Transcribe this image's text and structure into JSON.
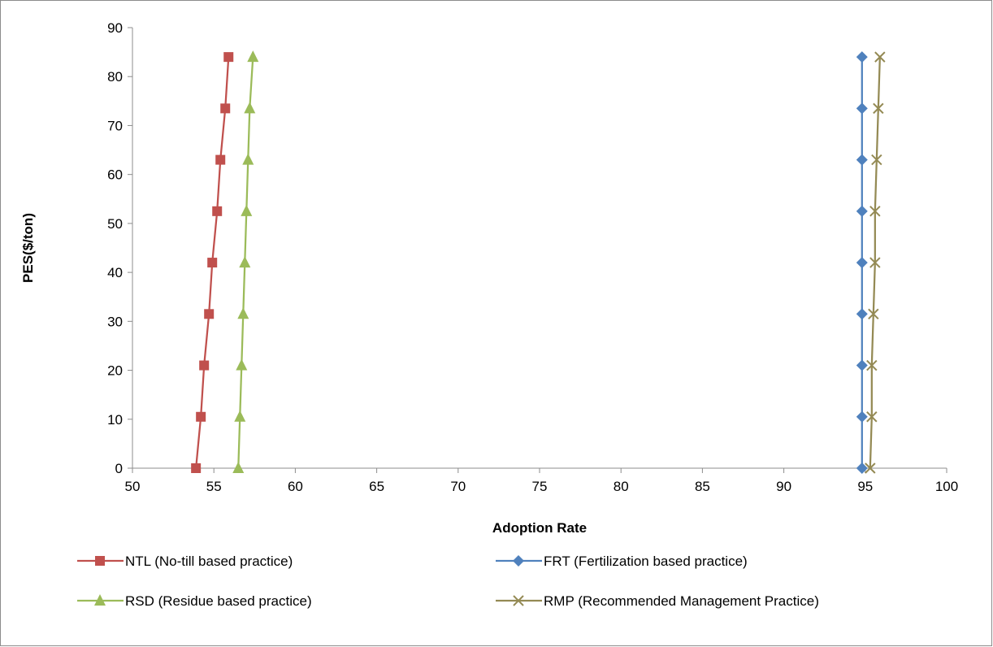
{
  "chart_data": {
    "type": "line",
    "title": "",
    "xlabel": "Adoption Rate",
    "ylabel": "PES($/ton)",
    "xlim": [
      50,
      100
    ],
    "ylim": [
      0,
      90
    ],
    "x_ticks": [
      50,
      55,
      60,
      65,
      70,
      75,
      80,
      85,
      90,
      95,
      100
    ],
    "y_ticks": [
      0,
      10,
      20,
      30,
      40,
      50,
      60,
      70,
      80,
      90
    ],
    "grid": false,
    "legend_position": "bottom",
    "y_values": [
      0,
      10.5,
      21,
      31.5,
      42,
      52.5,
      63,
      73.5,
      84
    ],
    "series": [
      {
        "name": "NTL (No-till based practice)",
        "color": "#c0504d",
        "marker": "square",
        "x": [
          53.9,
          54.2,
          54.4,
          54.7,
          54.9,
          55.2,
          55.4,
          55.7,
          55.9
        ]
      },
      {
        "name": "FRT (Fertilization based practice)",
        "color": "#4f81bd",
        "marker": "diamond",
        "x": [
          94.8,
          94.8,
          94.8,
          94.8,
          94.8,
          94.8,
          94.8,
          94.8,
          94.8
        ]
      },
      {
        "name": "RSD (Residue based practice)",
        "color": "#9bbb59",
        "marker": "triangle",
        "x": [
          56.5,
          56.6,
          56.7,
          56.8,
          56.9,
          57.0,
          57.1,
          57.2,
          57.4
        ]
      },
      {
        "name": "RMP (Recommended Management Practice)",
        "color": "#948a54",
        "marker": "x",
        "x": [
          95.3,
          95.4,
          95.4,
          95.5,
          95.6,
          95.6,
          95.7,
          95.8,
          95.9
        ]
      }
    ]
  }
}
